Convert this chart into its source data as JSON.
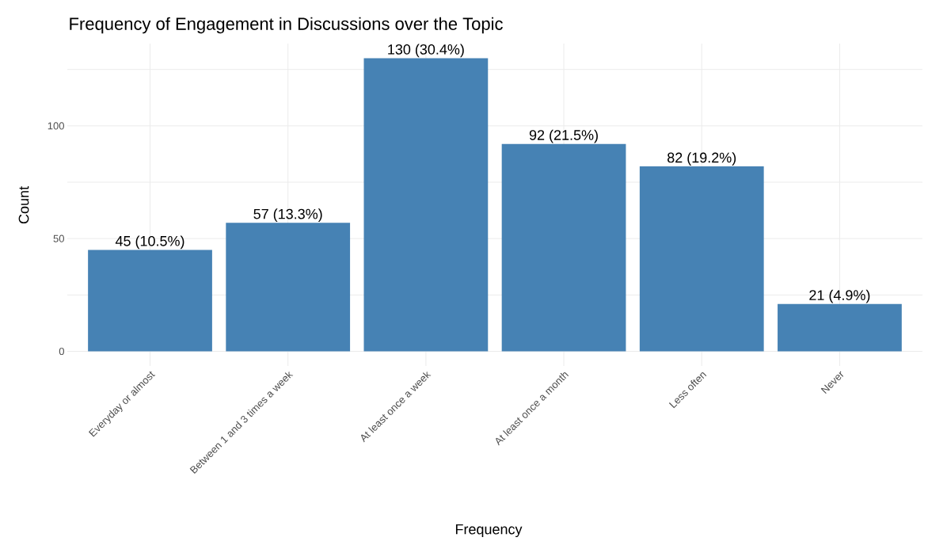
{
  "chart_data": {
    "type": "bar",
    "title": "Frequency of Engagement in Discussions over the Topic",
    "xlabel": "Frequency",
    "ylabel": "Count",
    "categories": [
      "Everyday or almost",
      "Between 1 and 3 times a week",
      "At least once a week",
      "At least once a month",
      "Less often",
      "Never"
    ],
    "values": [
      45,
      57,
      130,
      92,
      82,
      21
    ],
    "value_labels": [
      "45 (10.5%)",
      "57 (13.3%)",
      "130 (30.4%)",
      "92 (21.5%)",
      "82 (19.2%)",
      "21 (4.9%)"
    ],
    "color": "#4682b4",
    "ylim": [
      -6.5,
      136.5
    ],
    "yticks": [
      0,
      {
        "value": 25,
        "label": null
      },
      50,
      {
        "value": 75,
        "label": null
      },
      100,
      {
        "value": 125,
        "label": null
      }
    ],
    "grid": true
  }
}
